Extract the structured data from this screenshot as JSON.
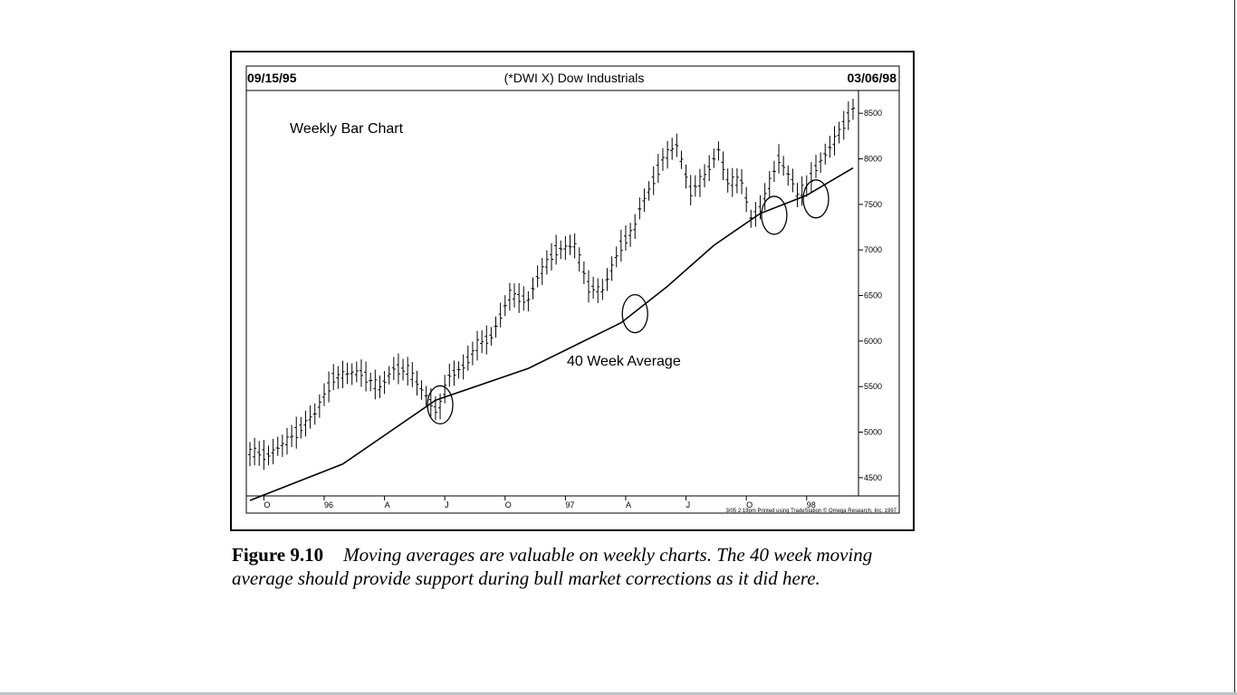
{
  "chart_data": {
    "type": "ohlc",
    "title": "(*DWI X) Dow Industrials",
    "start_date": "09/15/95",
    "end_date": "03/06/98",
    "panel_label": "Weekly Bar Chart",
    "ma_label": "40 Week Average",
    "footer": "3/05 2:19pm Printed using TradeStation © Omega Research, Inc. 1997",
    "ylim": [
      4300,
      8750
    ],
    "y_ticks": [
      4500,
      5000,
      5500,
      6000,
      6500,
      7000,
      7500,
      8000,
      8500
    ],
    "y_tick_labels": [
      "4500",
      "5000",
      "5500",
      "6000",
      "6500",
      "7000",
      "7500",
      "8000",
      "8500"
    ],
    "x_range": [
      0,
      130
    ],
    "x_ticks": [
      {
        "label": "O",
        "x": 3
      },
      {
        "label": "96",
        "x": 16
      },
      {
        "label": "A",
        "x": 29
      },
      {
        "label": "J",
        "x": 42
      },
      {
        "label": "O",
        "x": 55
      },
      {
        "label": "97",
        "x": 68
      },
      {
        "label": "A",
        "x": 81
      },
      {
        "label": "J",
        "x": 94
      },
      {
        "label": "O",
        "x": 107
      },
      {
        "label": "98",
        "x": 120
      }
    ],
    "series": [
      {
        "name": "Weekly Bar Chart",
        "type": "ohlc",
        "weeks": [
          0,
          4,
          8,
          10,
          14,
          18,
          22,
          24,
          28,
          31,
          34,
          38,
          40,
          41,
          43,
          46,
          49,
          52,
          56,
          60,
          62,
          66,
          70,
          73,
          76,
          80,
          83,
          84,
          86,
          89,
          92,
          95,
          98,
          101,
          103,
          106,
          108,
          110,
          114,
          117,
          118,
          120,
          122,
          126,
          130
        ],
        "close": [
          4780,
          4750,
          4900,
          5000,
          5200,
          5600,
          5650,
          5650,
          5480,
          5700,
          5680,
          5400,
          5250,
          5300,
          5620,
          5720,
          5950,
          6050,
          6500,
          6450,
          6700,
          7000,
          7050,
          6600,
          6550,
          7050,
          7250,
          7450,
          7650,
          8000,
          8150,
          7650,
          7800,
          8100,
          7750,
          7750,
          7350,
          7450,
          8000,
          7750,
          7600,
          7700,
          7900,
          8200,
          8550
        ],
        "range": 180
      },
      {
        "name": "40 Week Average",
        "type": "line",
        "x": [
          0,
          20,
          40,
          60,
          80,
          90,
          100,
          110,
          120,
          130
        ],
        "values": [
          4250,
          4650,
          5350,
          5700,
          6200,
          6600,
          7050,
          7400,
          7600,
          7900
        ]
      }
    ],
    "circles": [
      {
        "x": 41,
        "y": 5300
      },
      {
        "x": 83,
        "y": 6300
      },
      {
        "x": 113,
        "y": 7380
      },
      {
        "x": 122,
        "y": 7560
      }
    ],
    "grid": false
  },
  "caption": {
    "label": "Figure 9.10",
    "text": "Moving averages are valuable on weekly charts. The 40 week moving average should provide support during bull market corrections as it did here."
  }
}
